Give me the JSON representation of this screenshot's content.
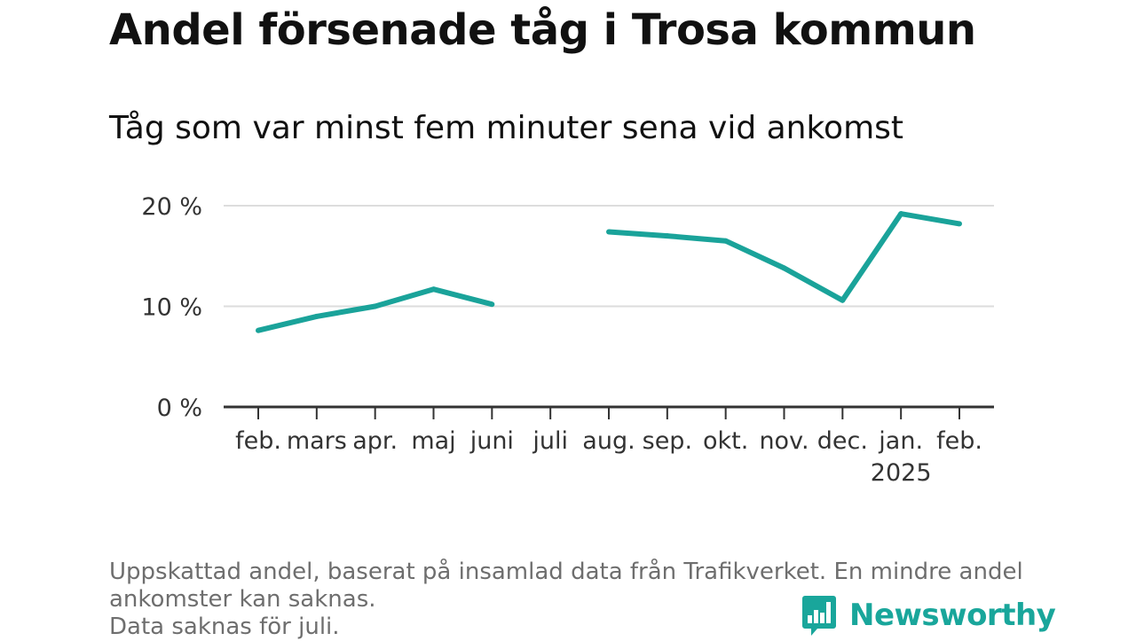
{
  "header": {
    "title": "Andel försenade tåg i Trosa kommun",
    "subtitle": "Tåg som var minst fem minuter sena vid ankomst"
  },
  "footer": {
    "note_line1": "Uppskattad andel, baserat på insamlad data från Trafikverket. En mindre andel",
    "note_line2": "ankomster kan saknas.",
    "note_line3": "Data saknas för juli.",
    "brand": "Newsworthy"
  },
  "colors": {
    "line": "#1aa39a",
    "grid": "#dddddd",
    "axis": "#333333",
    "brand": "#19a69b",
    "note": "#6e6e6e"
  },
  "icons": {
    "brand_logo": "bar-chart-speech-bubble-icon"
  },
  "chart_data": {
    "type": "line",
    "title": "Andel försenade tåg i Trosa kommun",
    "subtitle": "Tåg som var minst fem minuter sena vid ankomst",
    "xlabel": "",
    "ylabel": "",
    "categories": [
      "feb.",
      "mars",
      "apr.",
      "maj",
      "juni",
      "juli",
      "aug.",
      "sep.",
      "okt.",
      "nov.",
      "dec.",
      "jan.",
      "feb."
    ],
    "year_labels": [
      "",
      "",
      "",
      "",
      "",
      "",
      "",
      "",
      "",
      "",
      "",
      "2025",
      ""
    ],
    "series": [
      {
        "values": [
          7.6,
          9.0,
          10.0,
          11.7,
          10.2,
          null,
          17.4,
          17.0,
          16.5,
          13.8,
          10.6,
          19.2,
          18.2
        ]
      }
    ],
    "yticks": [
      0,
      10,
      20
    ],
    "ytick_labels": [
      "0 %",
      "10 %",
      "20 %"
    ],
    "ylim": [
      0,
      20
    ],
    "grid": true,
    "legend": "none"
  }
}
